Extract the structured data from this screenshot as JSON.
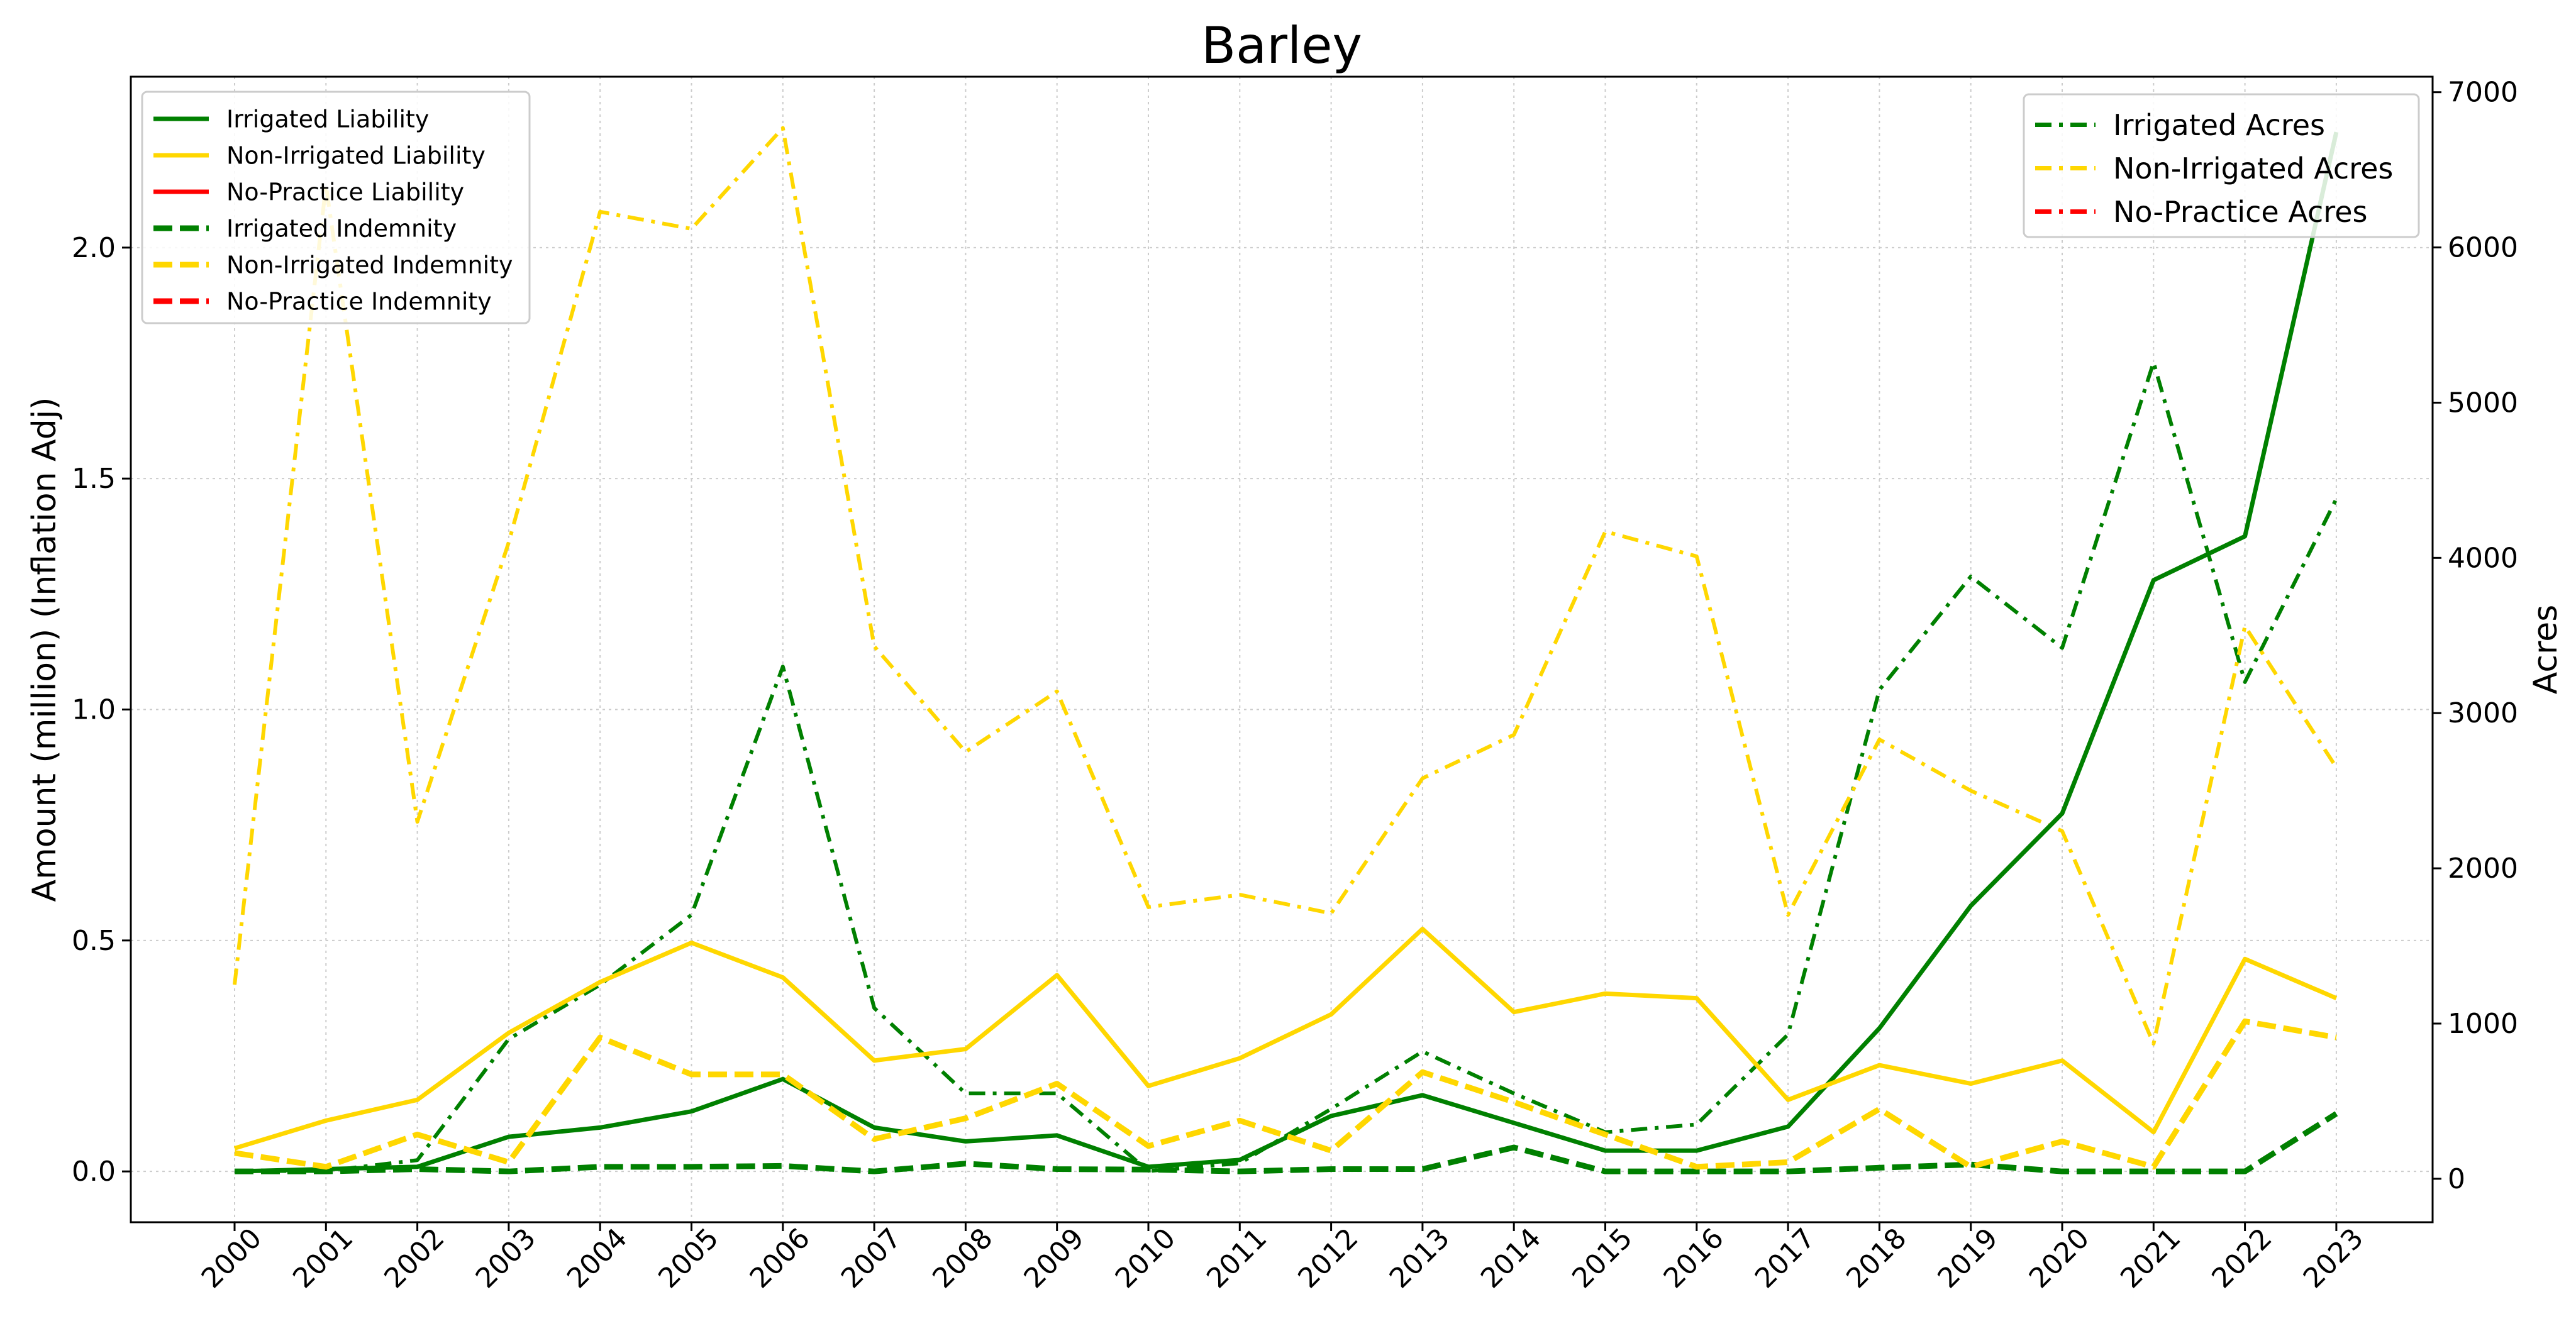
{
  "chart_data": {
    "type": "line",
    "title": "Barley",
    "xlabel": "",
    "ylabel_left": "Amount (million) (Inflation Adj)",
    "ylabel_right": "Acres",
    "x": [
      "2000",
      "2001",
      "2002",
      "2003",
      "2004",
      "2005",
      "2006",
      "2007",
      "2008",
      "2009",
      "2010",
      "2011",
      "2012",
      "2013",
      "2014",
      "2015",
      "2016",
      "2017",
      "2018",
      "2019",
      "2020",
      "2021",
      "2022",
      "2023"
    ],
    "ylim_left": [
      -0.11,
      2.37
    ],
    "ylim_right": [
      -280,
      7100
    ],
    "yticks_left": [
      "0.0",
      "0.5",
      "1.0",
      "1.5",
      "2.0"
    ],
    "yticks_right": [
      "0",
      "1000",
      "2000",
      "3000",
      "4000",
      "5000",
      "6000",
      "7000"
    ],
    "grid": true,
    "colors": {
      "irrigated": "#008000",
      "non_irrigated": "#FFD700",
      "no_practice": "#FF0000"
    },
    "series_left": [
      {
        "name": "Irrigated Liability",
        "color": "#008000",
        "style": "solid",
        "values": [
          0.0,
          0.005,
          0.01,
          0.075,
          0.095,
          0.13,
          0.2,
          0.095,
          0.065,
          0.078,
          0.01,
          0.025,
          0.12,
          0.165,
          0.105,
          0.045,
          0.045,
          0.097,
          0.31,
          0.575,
          0.775,
          1.28,
          1.375,
          2.25
        ]
      },
      {
        "name": "Non-Irrigated Liability",
        "color": "#FFD700",
        "style": "solid",
        "values": [
          0.05,
          0.11,
          0.155,
          0.3,
          0.41,
          0.495,
          0.42,
          0.24,
          0.265,
          0.425,
          0.185,
          0.245,
          0.34,
          0.525,
          0.345,
          0.385,
          0.375,
          0.155,
          0.23,
          0.19,
          0.24,
          0.085,
          0.46,
          0.375
        ]
      },
      {
        "name": "No-Practice Liability",
        "color": "#FF0000",
        "style": "solid",
        "values": []
      },
      {
        "name": "Irrigated Indemnity",
        "color": "#008000",
        "style": "dashed",
        "values": [
          0.0,
          0.0,
          0.005,
          0.0,
          0.01,
          0.01,
          0.012,
          0.0,
          0.017,
          0.005,
          0.004,
          0.0,
          0.005,
          0.005,
          0.052,
          0.0,
          0.0,
          0.0,
          0.008,
          0.015,
          0.0,
          0.0,
          0.0,
          0.125
        ]
      },
      {
        "name": "Non-Irrigated Indemnity",
        "color": "#FFD700",
        "style": "dashed",
        "values": [
          0.04,
          0.01,
          0.08,
          0.02,
          0.29,
          0.21,
          0.21,
          0.07,
          0.115,
          0.19,
          0.055,
          0.11,
          0.045,
          0.215,
          0.15,
          0.08,
          0.01,
          0.02,
          0.135,
          0.01,
          0.065,
          0.01,
          0.325,
          0.29
        ]
      },
      {
        "name": "No-Practice Indemnity",
        "color": "#FF0000",
        "style": "dashed",
        "values": []
      }
    ],
    "series_right": [
      {
        "name": "Irrigated Acres",
        "color": "#008000",
        "style": "dashdot",
        "values": [
          50,
          50,
          120,
          900,
          1250,
          1700,
          3300,
          1100,
          550,
          550,
          50,
          100,
          450,
          820,
          550,
          300,
          350,
          930,
          3150,
          3880,
          3420,
          5260,
          3200,
          4380
        ]
      },
      {
        "name": "Non-Irrigated Acres",
        "color": "#FFD700",
        "style": "dashdot",
        "values": [
          1250,
          6400,
          2300,
          4100,
          6230,
          6120,
          6770,
          3430,
          2750,
          3140,
          1750,
          1830,
          1710,
          2580,
          2860,
          4170,
          4010,
          1700,
          2830,
          2500,
          2240,
          870,
          3560,
          2650
        ]
      },
      {
        "name": "No-Practice Acres",
        "color": "#FF0000",
        "style": "dashdot",
        "values": []
      }
    ],
    "legend_left_placement": "top-left",
    "legend_right_placement": "top-right"
  }
}
